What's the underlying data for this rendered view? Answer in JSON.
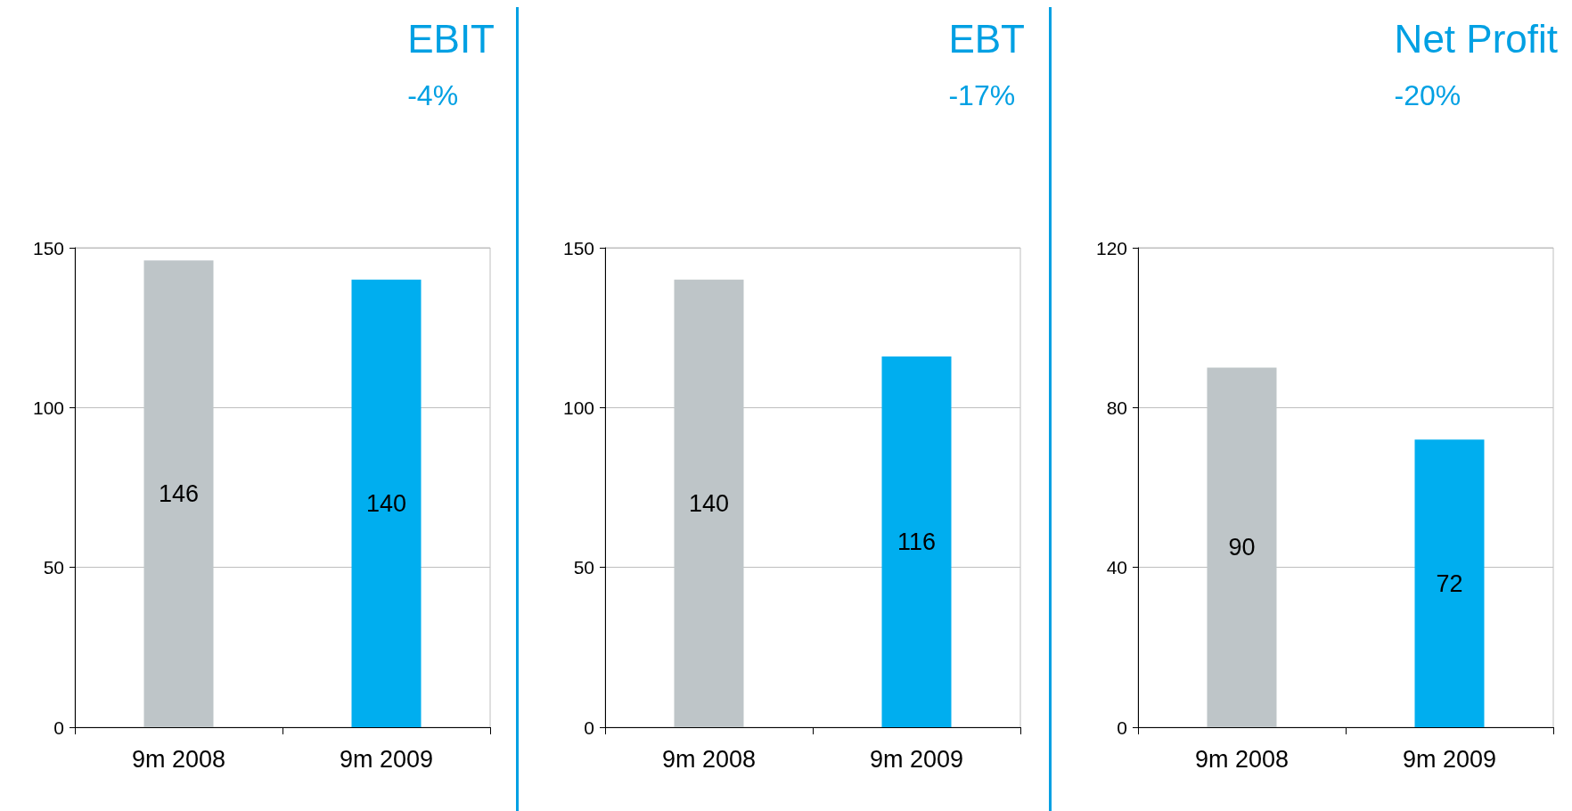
{
  "chart_data": [
    {
      "type": "bar",
      "title": "EBIT",
      "subtitle": "-4%",
      "categories": [
        "9m 2008",
        "9m 2009"
      ],
      "values": [
        146,
        140
      ],
      "colors": [
        "#bec5c8",
        "#00aeef"
      ],
      "ylim": [
        0,
        150
      ],
      "yticks": [
        0,
        50,
        100,
        150
      ],
      "grid": "y",
      "data_labels": true
    },
    {
      "type": "bar",
      "title": "EBT",
      "subtitle": "-17%",
      "categories": [
        "9m 2008",
        "9m 2009"
      ],
      "values": [
        140,
        116
      ],
      "colors": [
        "#bec5c8",
        "#00aeef"
      ],
      "ylim": [
        0,
        150
      ],
      "yticks": [
        0,
        50,
        100,
        150
      ],
      "grid": "y",
      "data_labels": true
    },
    {
      "type": "bar",
      "title": "Net Profit",
      "subtitle": "-20%",
      "categories": [
        "9m 2008",
        "9m 2009"
      ],
      "values": [
        90,
        72
      ],
      "colors": [
        "#bec5c8",
        "#00aeef"
      ],
      "ylim": [
        0,
        120
      ],
      "yticks": [
        0,
        40,
        80,
        120
      ],
      "grid": "y",
      "data_labels": true
    }
  ]
}
